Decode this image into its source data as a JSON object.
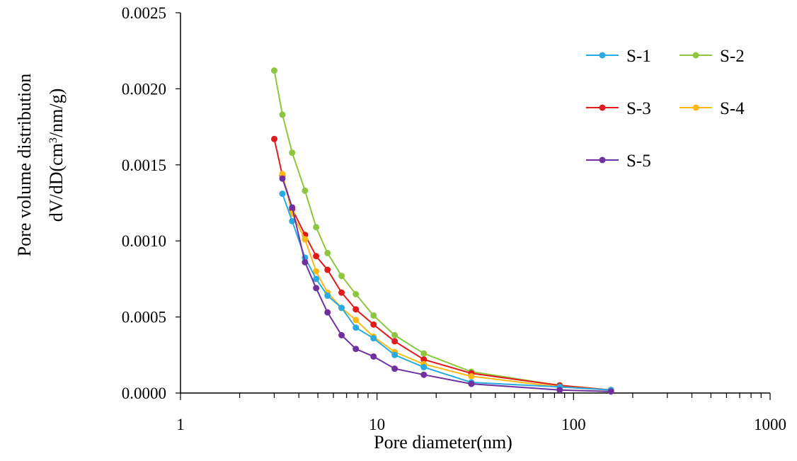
{
  "chart_data": {
    "type": "line",
    "title": "",
    "xlabel": "Pore diameter(nm)",
    "ylabel_line1": "Pore volume distribution",
    "ylabel_line2_prefix": "dV/dD(cm",
    "ylabel_line2_sup": "3",
    "ylabel_line2_suffix": "/nm/g)",
    "x_scale": "log",
    "xlim": [
      1,
      1000
    ],
    "ylim": [
      0,
      0.0025
    ],
    "x_ticks": [
      1,
      10,
      100,
      1000
    ],
    "x_tick_labels": [
      "1",
      "10",
      "100",
      "1000"
    ],
    "y_ticks": [
      0,
      0.0005,
      0.001,
      0.0015,
      0.002,
      0.0025
    ],
    "y_tick_labels": [
      "0.0000",
      "0.0005",
      "0.0010",
      "0.0015",
      "0.0020",
      "0.0025"
    ],
    "grid": false,
    "legend_position": "top-right",
    "series": [
      {
        "name": "S-1",
        "color": "#29abe2",
        "x": [
          3.3,
          3.7,
          4.3,
          4.9,
          5.6,
          6.6,
          7.8,
          9.6,
          12.3,
          17.3,
          30.2,
          85.0,
          155.0
        ],
        "y": [
          0.00131,
          0.00113,
          0.00089,
          0.00075,
          0.00064,
          0.00056,
          0.00043,
          0.00036,
          0.00025,
          0.00017,
          7e-05,
          4e-05,
          2e-05
        ]
      },
      {
        "name": "S-2",
        "color": "#8dc63f",
        "x": [
          3.0,
          3.3,
          3.7,
          4.3,
          4.9,
          5.6,
          6.6,
          7.8,
          9.6,
          12.3,
          17.3,
          30.2,
          85.0,
          155.0
        ],
        "y": [
          0.00212,
          0.00183,
          0.00158,
          0.00133,
          0.00109,
          0.00092,
          0.00077,
          0.00065,
          0.00051,
          0.00038,
          0.00026,
          0.00014,
          5e-05,
          2e-05
        ]
      },
      {
        "name": "S-3",
        "color": "#e31a1c",
        "x": [
          3.0,
          3.3,
          3.7,
          4.3,
          4.9,
          5.6,
          6.6,
          7.8,
          9.6,
          12.3,
          17.3,
          30.2,
          85.0,
          155.0
        ],
        "y": [
          0.00167,
          0.00143,
          0.00121,
          0.00104,
          0.0009,
          0.00081,
          0.00066,
          0.00055,
          0.00045,
          0.00034,
          0.00022,
          0.00013,
          5e-05,
          2e-05
        ]
      },
      {
        "name": "S-4",
        "color": "#fdb913",
        "x": [
          3.3,
          3.7,
          4.3,
          4.9,
          5.6,
          6.6,
          7.8,
          9.6,
          12.3,
          17.3,
          30.2,
          85.0,
          155.0
        ],
        "y": [
          0.00144,
          0.00118,
          0.00101,
          0.0008,
          0.00066,
          0.00056,
          0.00048,
          0.00037,
          0.00027,
          0.00019,
          0.00011,
          4e-05,
          2e-05
        ]
      },
      {
        "name": "S-5",
        "color": "#7030a0",
        "x": [
          3.3,
          3.7,
          4.3,
          4.9,
          5.6,
          6.6,
          7.8,
          9.6,
          12.3,
          17.3,
          30.2,
          85.0,
          155.0
        ],
        "y": [
          0.00141,
          0.00122,
          0.00086,
          0.00069,
          0.00053,
          0.00038,
          0.00029,
          0.00024,
          0.00016,
          0.00012,
          6e-05,
          2e-05,
          1e-05
        ]
      }
    ]
  }
}
